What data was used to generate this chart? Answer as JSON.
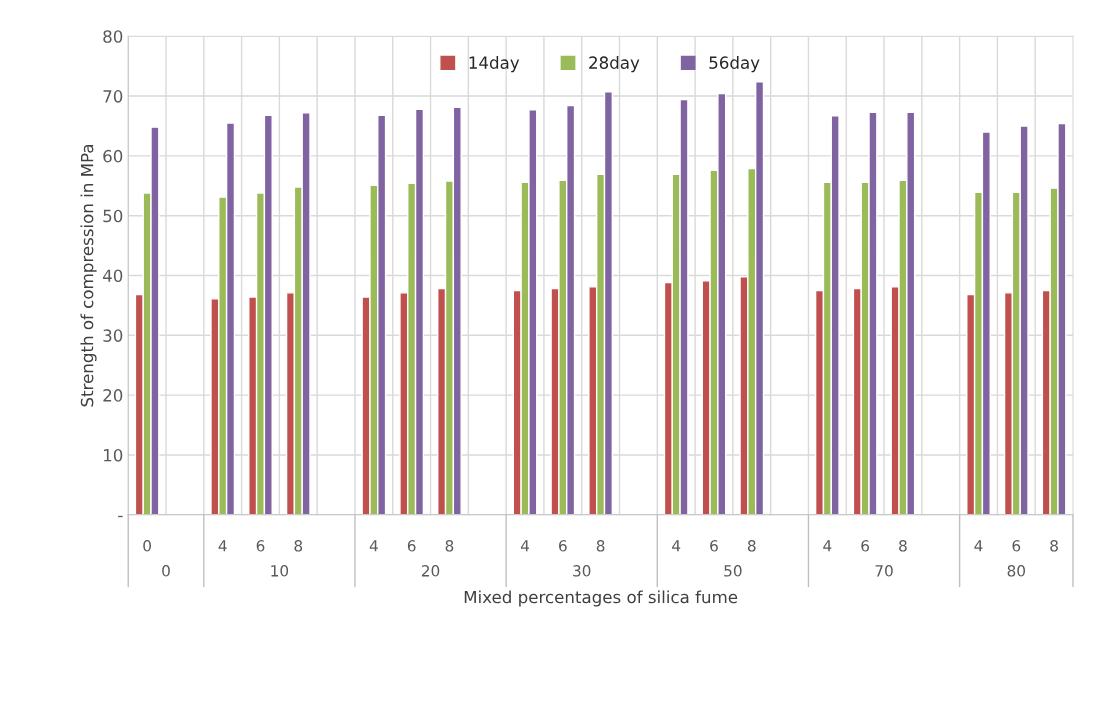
{
  "chart_data": {
    "type": "bar",
    "categories": [
      "0",
      null,
      "4",
      "6",
      "8",
      null,
      "4",
      "6",
      "8",
      null,
      "4",
      "6",
      "8",
      null,
      "4",
      "6",
      "8",
      null,
      "4",
      "6",
      "8",
      null,
      "4",
      "6",
      "8"
    ],
    "series": [
      {
        "name": "14day",
        "color": "#c0504d",
        "values": [
          36.8,
          null,
          36.1,
          36.4,
          37.1,
          null,
          36.4,
          37.1,
          37.8,
          null,
          37.5,
          37.8,
          38.1,
          null,
          38.8,
          39.1,
          39.8,
          null,
          37.5,
          37.8,
          38.1,
          null,
          36.8,
          37.1,
          37.5
        ]
      },
      {
        "name": "28day",
        "color": "#9bbb59",
        "values": [
          53.8,
          null,
          53.1,
          53.8,
          54.8,
          null,
          55.1,
          55.4,
          55.8,
          null,
          55.6,
          55.9,
          56.9,
          null,
          56.9,
          57.6,
          57.9,
          null,
          55.6,
          55.6,
          55.9,
          null,
          53.9,
          53.9,
          54.6
        ]
      },
      {
        "name": "56day",
        "color": "#8064a2",
        "values": [
          64.8,
          null,
          65.5,
          66.8,
          67.2,
          null,
          66.8,
          67.8,
          68.1,
          null,
          67.7,
          68.4,
          70.7,
          null,
          69.4,
          70.4,
          72.4,
          null,
          66.7,
          67.3,
          67.3,
          null,
          64.0,
          65.0,
          65.4
        ]
      }
    ],
    "annotations": [
      "0",
      "10",
      "20",
      "30",
      "50",
      "70",
      "80"
    ],
    "xlabel": "Mixed percentages of silica fume",
    "ylabel": "Strength of compression in MPa",
    "ylim": [
      0,
      80
    ],
    "yticks": [
      {
        "value": 0,
        "label": "-"
      },
      10,
      20,
      30,
      40,
      50,
      60,
      70,
      80
    ],
    "grid": true,
    "legend": "top"
  }
}
